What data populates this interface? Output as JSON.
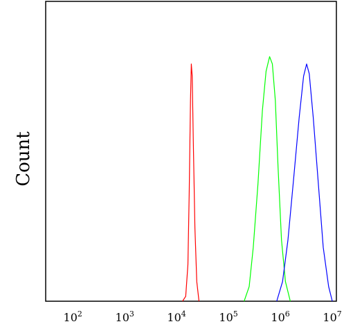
{
  "chart_data": {
    "type": "line",
    "title": "",
    "xlabel": "",
    "ylabel": "Count",
    "x_scale": "log",
    "xlim": [
      30,
      12000000
    ],
    "ylim": [
      0,
      1.0
    ],
    "x_ticks": [
      {
        "value": 100,
        "base": "10",
        "exp": "2"
      },
      {
        "value": 1000,
        "base": "10",
        "exp": "3"
      },
      {
        "value": 10000,
        "base": "10",
        "exp": "4"
      },
      {
        "value": 100000,
        "base": "10",
        "exp": "5"
      },
      {
        "value": 1000000,
        "base": "10",
        "exp": "6"
      },
      {
        "value": 10000000,
        "base": "10",
        "exp": "7"
      }
    ],
    "grid": false,
    "legend": "none",
    "series": [
      {
        "color": "#ff0000",
        "points": [
          [
            13000,
            0
          ],
          [
            15000,
            0.02
          ],
          [
            16500,
            0.15
          ],
          [
            17500,
            0.45
          ],
          [
            18500,
            0.82
          ],
          [
            19200,
            0.97
          ],
          [
            20000,
            0.92
          ],
          [
            21000,
            0.65
          ],
          [
            22500,
            0.3
          ],
          [
            24500,
            0.08
          ],
          [
            27000,
            0
          ]
        ]
      },
      {
        "color": "#00ff00",
        "points": [
          [
            200000,
            0
          ],
          [
            250000,
            0.06
          ],
          [
            300000,
            0.22
          ],
          [
            370000,
            0.48
          ],
          [
            450000,
            0.78
          ],
          [
            530000,
            0.94
          ],
          [
            620000,
            1.0
          ],
          [
            700000,
            0.97
          ],
          [
            800000,
            0.82
          ],
          [
            900000,
            0.55
          ],
          [
            1050000,
            0.25
          ],
          [
            1250000,
            0.08
          ],
          [
            1550000,
            0
          ]
        ]
      },
      {
        "color": "#0000ff",
        "points": [
          [
            850000,
            0
          ],
          [
            1100000,
            0.08
          ],
          [
            1400000,
            0.25
          ],
          [
            1800000,
            0.5
          ],
          [
            2300000,
            0.75
          ],
          [
            2800000,
            0.92
          ],
          [
            3200000,
            0.97
          ],
          [
            3600000,
            0.93
          ],
          [
            4300000,
            0.75
          ],
          [
            5300000,
            0.5
          ],
          [
            6700000,
            0.22
          ],
          [
            8500000,
            0.06
          ],
          [
            10000000,
            0
          ]
        ]
      }
    ]
  }
}
